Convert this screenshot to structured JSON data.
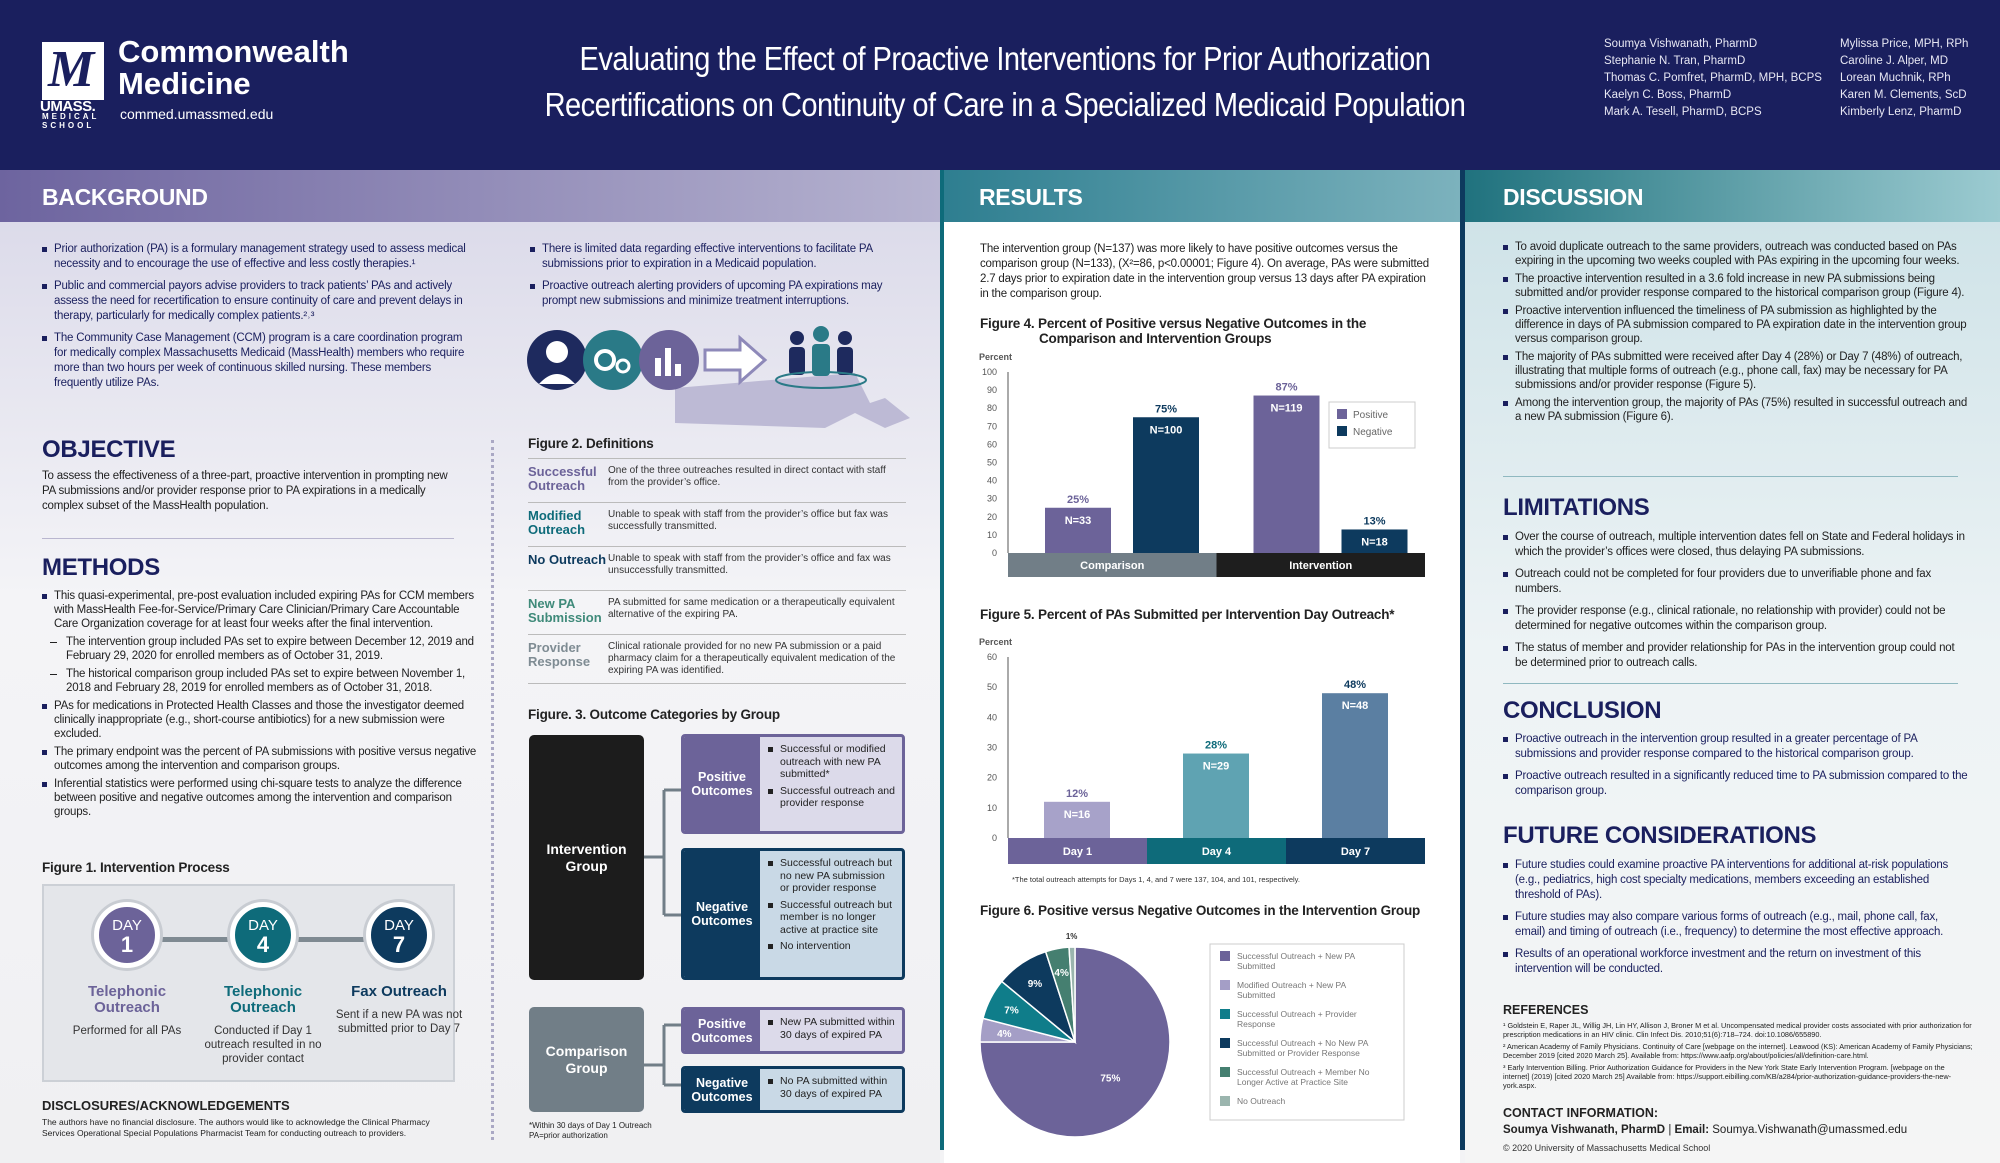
{
  "header": {
    "logo": {
      "mark": "M",
      "umass": "UMASS.",
      "school": "MEDICAL SCHOOL"
    },
    "brand_line1": "Commonwealth",
    "brand_line2": "Medicine",
    "website": "commed.umassmed.edu",
    "title_line1": "Evaluating the Effect of Proactive Interventions for Prior Authorization",
    "title_line2": "Recertifications on Continuity of Care in a Specialized Medicaid Population",
    "authors_col1": [
      "Soumya Vishwanath, PharmD",
      "Stephanie N. Tran, PharmD",
      "Thomas C. Pomfret, PharmD, MPH, BCPS",
      "Kaelyn C. Boss, PharmD",
      "Mark A. Tesell, PharmD, BCPS"
    ],
    "authors_col2": [
      "Mylissa Price, MPH, RPh",
      "Caroline J. Alper, MD",
      "Lorean Muchnik, RPh",
      "Karen M. Clements, ScD",
      "Kimberly Lenz, PharmD"
    ]
  },
  "background": {
    "heading": "BACKGROUND",
    "col1": [
      "Prior authorization (PA) is a formulary management strategy used to assess medical necessity and to encourage the use of effective and less costly therapies.¹",
      "Public and commercial payors advise providers to track patients’ PAs and actively assess the need for recertification to ensure continuity of care and prevent delays in therapy, particularly for medically complex patients.²˒³",
      "The Community Case Management (CCM) program is a care coordination program for medically complex Massachusetts Medicaid (MassHealth) members who require more than two hours per week of continuous skilled nursing. These members frequently utilize PAs."
    ],
    "col2": [
      "There is limited data regarding effective interventions to facilitate PA submissions prior to expiration in a Medicaid population.",
      "Proactive outreach alerting providers of upcoming PA expirations may prompt new submissions and minimize treatment interruptions."
    ]
  },
  "objective": {
    "heading": "OBJECTIVE",
    "text": "To assess the effectiveness of a three-part, proactive intervention in prompting new PA submissions and/or provider response prior to PA expirations in a medically complex subset of the MassHealth population."
  },
  "methods": {
    "heading": "METHODS",
    "b1": "This quasi-experimental, pre-post evaluation included expiring PAs for CCM members with MassHealth Fee-for-Service/Primary Care Clinician/Primary Care Accountable Care Organization coverage for at least four weeks after the final intervention.",
    "sub": [
      "The intervention group included PAs set to expire between December 12, 2019 and February 29, 2020 for enrolled members as of October 31, 2019.",
      "The historical comparison group included PAs set to expire between November 1, 2018 and February 28, 2019 for enrolled members as of October 31, 2018."
    ],
    "rest": [
      "PAs for medications in Protected Health Classes and those the investigator deemed clinically inappropriate (e.g., short-course antibiotics) for a new submission were excluded.",
      "The primary endpoint was the percent of PA submissions with positive versus negative outcomes among the intervention and comparison groups.",
      "Inferential statistics were performed using chi-square tests to analyze the difference between positive and negative outcomes among the intervention and comparison groups."
    ]
  },
  "figure1": {
    "title": "Figure 1. Intervention Process",
    "steps": [
      {
        "day_label": "DAY",
        "day": "1",
        "heading": "Telephonic Outreach",
        "desc": "Performed for all PAs",
        "color": "#6c6399"
      },
      {
        "day_label": "DAY",
        "day": "4",
        "heading": "Telephonic Outreach",
        "desc": "Conducted if Day 1 outreach resulted in no provider contact",
        "color": "#0e6b7a"
      },
      {
        "day_label": "DAY",
        "day": "7",
        "heading": "Fax Outreach",
        "desc": "Sent if a new PA was not submitted prior to Day 7",
        "color": "#0d3a5e"
      }
    ]
  },
  "disclosures": {
    "heading": "DISCLOSURES/ACKNOWLEDGEMENTS",
    "text": "The authors have no financial disclosure. The authors would like to acknowledge the Clinical Pharmacy Services Operational Special Populations Pharmacist Team for conducting outreach to providers."
  },
  "figure2": {
    "title": "Figure 2. Definitions",
    "rows": [
      {
        "term": "Successful Outreach",
        "def": "One of the three outreaches resulted in direct contact with staff from the provider’s office.",
        "color": "#6c6399"
      },
      {
        "term": "Modified Outreach",
        "def": "Unable to speak with staff from the provider’s office but fax was successfully transmitted.",
        "color": "#0e6b7a"
      },
      {
        "term": "No Outreach",
        "def": "Unable to speak with staff from the provider’s office and fax was unsuccessfully transmitted.",
        "color": "#0d3a5e"
      },
      {
        "term": "New PA Submission",
        "def": "PA submitted for same medication or a therapeutically equivalent alternative of the expiring PA.",
        "color": "#3f8a7a"
      },
      {
        "term": "Provider Response",
        "def": "Clinical rationale provided for no new PA submission or a paid pharmacy claim for a therapeutically equivalent medication of the expiring PA was identified.",
        "color": "#7f8c93"
      }
    ]
  },
  "figure3": {
    "title": "Figure. 3. Outcome Categories by Group",
    "intervention_group": "Intervention Group",
    "comparison_group": "Comparison Group",
    "positive_label": "Positive Outcomes",
    "negative_label": "Negative Outcomes",
    "int_positive": [
      "Successful or modified outreach with new PA submitted*",
      "Successful outreach and provider response"
    ],
    "int_negative": [
      "Successful outreach but no new PA submission or provider response",
      "Successful outreach but member is no longer active at practice site",
      "No intervention"
    ],
    "comp_positive": [
      "New PA submitted within 30 days of expired PA"
    ],
    "comp_negative": [
      "No PA submitted within 30 days of expired PA"
    ],
    "footnote1": "*Within 30 days of Day 1 Outreach",
    "footnote2": "PA=prior authorization"
  },
  "results": {
    "heading": "RESULTS",
    "text": "The intervention group (N=137) was more likely to have positive outcomes versus the comparison group (N=133), (X²=86, p<0.00001; Figure 4). On average, PAs were submitted 2.7 days prior to expiration date in the intervention group versus 13 days after PA expiration in the comparison group."
  },
  "chart_data": [
    {
      "type": "bar",
      "title": "Figure 4. Percent of Positive versus Negative Outcomes in the Comparison and Intervention Groups",
      "ylabel": "Percent",
      "ylim": [
        0,
        100
      ],
      "yticks": [
        0,
        10,
        20,
        30,
        40,
        50,
        60,
        70,
        80,
        90,
        100
      ],
      "categories": [
        "Comparison",
        "Intervention"
      ],
      "series": [
        {
          "name": "Positive",
          "values": [
            25,
            87
          ],
          "n_labels": [
            "N=33",
            "N=119"
          ],
          "value_labels": [
            "25%",
            "87%"
          ],
          "color": "#6c6399"
        },
        {
          "name": "Negative",
          "values": [
            75,
            13
          ],
          "n_labels": [
            "N=100",
            "N=18"
          ],
          "value_labels": [
            "75%",
            "13%"
          ],
          "color": "#0d3a5e"
        }
      ],
      "category_colors": [
        "#717e87",
        "#1e1e1e"
      ],
      "legend": "top-right"
    },
    {
      "type": "bar",
      "title": "Figure 5. Percent of PAs Submitted per Intervention Day Outreach*",
      "ylabel": "Percent",
      "ylim": [
        0,
        60
      ],
      "yticks": [
        0,
        10,
        20,
        30,
        40,
        50,
        60
      ],
      "categories": [
        "Day 1",
        "Day 4",
        "Day 7"
      ],
      "values": [
        12,
        28,
        48
      ],
      "value_labels": [
        "12%",
        "28%",
        "48%"
      ],
      "n_labels": [
        "N=16",
        "N=29",
        "N=48"
      ],
      "bar_colors": [
        "#a7a2c9",
        "#5fa3b2",
        "#5b7fa2"
      ],
      "category_colors": [
        "#6c6399",
        "#0e6b7a",
        "#0d3a5e"
      ],
      "footnote": "*The total outreach attempts for Days 1, 4, and 7 were 137, 104, and 101, respectively."
    },
    {
      "type": "pie",
      "title": "Figure 6. Positive versus Negative Outcomes in the Intervention Group",
      "slices": [
        {
          "label": "Successful Outreach + New PA Submitted",
          "value": 75,
          "color": "#6c6399"
        },
        {
          "label": "Modified Outreach + New PA Submitted",
          "value": 4,
          "color": "#a49ec6"
        },
        {
          "label": "Successful Outreach + Provider Response",
          "value": 7,
          "color": "#0f7d8a"
        },
        {
          "label": "Successful Outreach + No New PA Submitted or Provider Response",
          "value": 9,
          "color": "#0d3a5e"
        },
        {
          "label": "Successful Outreach + Member No Longer Active at Practice Site",
          "value": 4,
          "color": "#457f70"
        },
        {
          "label": "No Outreach",
          "value": 1,
          "color": "#9bb5ae"
        }
      ],
      "legend": "right"
    }
  ],
  "discussion": {
    "heading": "DISCUSSION",
    "items": [
      "To avoid duplicate outreach to the same providers, outreach was conducted based on PAs expiring in the upcoming two weeks coupled with PAs expiring in the upcoming four weeks.",
      "The proactive intervention resulted in a 3.6 fold increase in new PA submissions being submitted and/or provider response compared to the historical comparison group (Figure 4).",
      "Proactive intervention influenced the timeliness of PA submission as highlighted by the difference in days of PA submission compared to PA expiration date in the intervention group versus comparison group.",
      "The majority of PAs submitted were received after Day 4 (28%) or Day 7 (48%) of outreach, illustrating that multiple forms of outreach (e.g., phone call, fax) may be necessary for PA submissions and/or provider response (Figure 5).",
      "Among the intervention group, the majority of PAs (75%) resulted in successful outreach and a new PA submission (Figure 6)."
    ]
  },
  "limitations": {
    "heading": "LIMITATIONS",
    "items": [
      "Over the course of outreach, multiple intervention dates fell on State and Federal holidays in which the provider’s offices were closed, thus delaying PA submissions.",
      "Outreach could not be completed for four providers due to unverifiable phone and fax numbers.",
      "The provider response (e.g., clinical rationale, no relationship with provider) could not be determined for negative outcomes within the comparison group.",
      "The status of member and provider relationship for PAs in the intervention group could not be determined prior to outreach calls."
    ]
  },
  "conclusion": {
    "heading": "CONCLUSION",
    "items": [
      "Proactive outreach in the intervention group resulted in a greater percentage of PA submissions and provider response compared to the historical comparison group.",
      "Proactive outreach resulted in a significantly reduced time to PA submission compared to the comparison group."
    ]
  },
  "future": {
    "heading": "FUTURE CONSIDERATIONS",
    "items": [
      "Future studies could examine proactive PA interventions for additional at-risk populations (e.g., pediatrics, high cost specialty medications, members exceeding an established threshold of PAs).",
      "Future studies may also compare various forms of outreach (e.g., mail, phone call, fax, email) and timing of outreach (i.e., frequency) to determine the most effective approach.",
      "Results of an operational workforce investment and the return on investment of this intervention will be conducted."
    ]
  },
  "references": {
    "heading": "REFERENCES",
    "items": [
      "¹ Goldstein E, Raper JL, Willig JH, Lin HY, Allison J, Broner M et al. Uncompensated medical provider costs associated with prior authorization for prescription medications in an HIV clinic. Clin Infect Dis. 2010;51(6):718–724. doi:10.1086/655890.",
      "² American Academy of Family Physicians. Continuity of Care [webpage on the internet]. Leawood (KS): American Academy of Family Physicians; December 2019 [cited 2020 March 25]. Available from: https://www.aafp.org/about/policies/all/definition-care.html.",
      "³ Early Intervention Billing. Prior Authorization Guidance for Providers in the New York State Early Intervention Program. [webpage on the internet] (2019) [cited 2020 March 25] Available from: https://support.eibilling.com/KB/a284/prior-authorization-guidance-providers-the-new-york.aspx."
    ]
  },
  "contact": {
    "heading": "CONTACT INFORMATION:",
    "name": "Soumya Vishwanath, PharmD",
    "separator": "|",
    "email_label": "Email:",
    "email": "Soumya.Vishwanath@umassmed.edu",
    "copyright": "© 2020 University of Massachusetts Medical School"
  }
}
